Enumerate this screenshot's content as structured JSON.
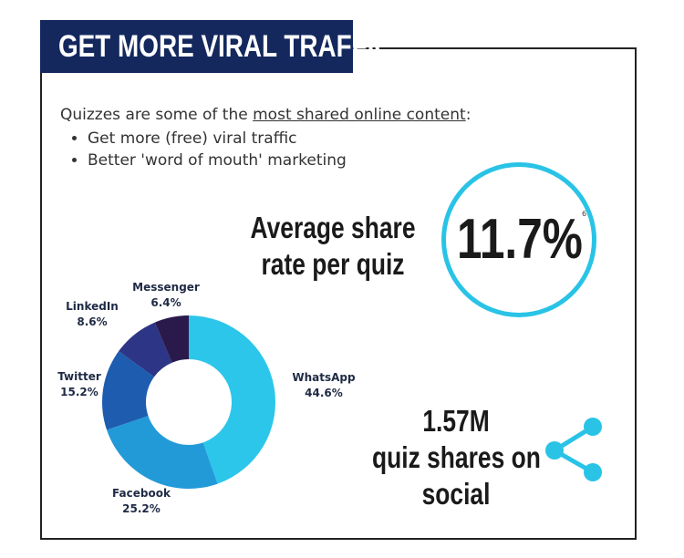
{
  "header": {
    "title": "GET MORE VIRAL TRAFFIC"
  },
  "intro": {
    "lead_prefix": "Quizzes are some of the ",
    "lead_link": "most shared online content",
    "lead_suffix": ":",
    "bullets": [
      "Get more (free) viral traffic",
      "Better 'word of mouth' marketing"
    ]
  },
  "stats": {
    "average_share": {
      "label_line1": "Average share",
      "label_line2": "rate per quiz",
      "value": "11.7%",
      "footnote": "6"
    },
    "quiz_shares": {
      "line1": "1.57M",
      "line2": "quiz shares on",
      "line3": "social"
    }
  },
  "icons": {
    "share": "share-icon"
  },
  "colors": {
    "banner": "#14285e",
    "accent": "#29c3e6"
  },
  "chart_data": {
    "type": "pie",
    "categories": [
      "WhatsApp",
      "Facebook",
      "Twitter",
      "LinkedIn",
      "Messenger"
    ],
    "values": [
      44.6,
      25.2,
      15.2,
      8.6,
      6.4
    ],
    "value_labels": [
      "44.6%",
      "25.2%",
      "15.2%",
      "8.6%",
      "6.4%"
    ],
    "colors": [
      "#2cc6ea",
      "#229ad8",
      "#1d5cae",
      "#2d3586",
      "#2a1a4c"
    ],
    "donut": true
  }
}
